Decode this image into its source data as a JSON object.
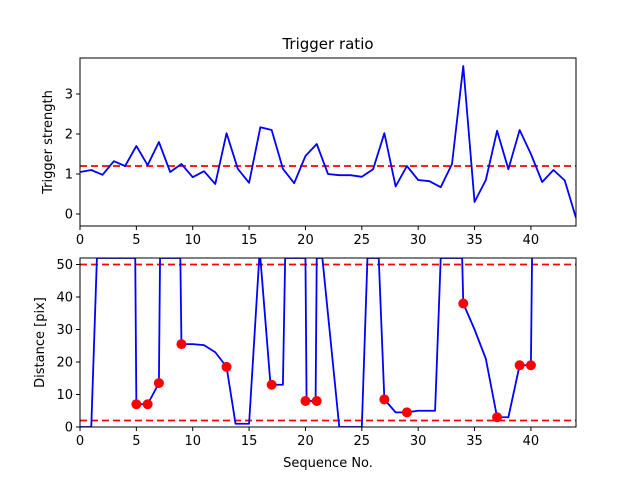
{
  "chart_data": [
    {
      "type": "line",
      "title": "Trigger ratio",
      "xlabel": "Sequence No.",
      "ylabel": "Trigger strength",
      "xlim": [
        0,
        44
      ],
      "ylim": [
        -0.3,
        3.9
      ],
      "xticks": [
        0,
        5,
        10,
        15,
        20,
        25,
        30,
        35,
        40
      ],
      "yticks": [
        0,
        1,
        2,
        3
      ],
      "series": [
        {
          "color": "#0000ff",
          "x": [
            0,
            1,
            2,
            3,
            4,
            5,
            6,
            7,
            8,
            9,
            10,
            11,
            12,
            13,
            14,
            15,
            16,
            17,
            18,
            19,
            20,
            21,
            22,
            23,
            24,
            25,
            26,
            27,
            28,
            29,
            30,
            31,
            32,
            33,
            34,
            35,
            36,
            37,
            38,
            39,
            40,
            41,
            42,
            43,
            44
          ],
          "y": [
            1.05,
            1.1,
            0.98,
            1.32,
            1.2,
            1.7,
            1.22,
            1.8,
            1.05,
            1.25,
            0.92,
            1.07,
            0.75,
            2.02,
            1.13,
            0.78,
            2.17,
            2.1,
            1.13,
            0.77,
            1.45,
            1.75,
            1.0,
            0.97,
            0.97,
            0.93,
            1.12,
            2.02,
            0.69,
            1.2,
            0.85,
            0.82,
            0.67,
            1.25,
            3.7,
            0.3,
            0.85,
            2.08,
            1.12,
            2.1,
            1.5,
            0.8,
            1.1,
            0.84,
            -0.1
          ]
        }
      ],
      "hlines": [
        {
          "y": 1.2,
          "color": "#ff0000",
          "style": "dashed"
        }
      ]
    },
    {
      "type": "line",
      "title": "",
      "xlabel": "Sequence No.",
      "ylabel": "Distance [pix]",
      "xlim": [
        0,
        44
      ],
      "ylim": [
        0,
        52
      ],
      "xticks": [
        0,
        5,
        10,
        15,
        20,
        25,
        30,
        35,
        40
      ],
      "yticks": [
        0,
        10,
        20,
        30,
        40,
        50
      ],
      "series": [
        {
          "color": "#0000ff",
          "x": [
            0,
            1,
            1.5,
            4.9,
            5,
            6,
            7,
            7.1,
            8.9,
            9,
            10,
            11,
            12,
            13,
            13.8,
            15,
            15.9,
            16,
            16.9,
            17,
            18,
            18.2,
            19,
            20,
            20.1,
            20.9,
            21,
            21.5,
            23,
            24,
            25,
            25.5,
            26.5,
            27,
            28,
            29,
            30,
            31.5,
            32,
            33,
            33.9,
            34,
            35,
            36,
            37,
            38,
            39,
            40,
            40.1
          ],
          "y": [
            0,
            0,
            52,
            52,
            7,
            7,
            13.5,
            52,
            52,
            25.5,
            25.5,
            25.2,
            23,
            18.5,
            1,
            1,
            52,
            52,
            13,
            13,
            13,
            52,
            52,
            52,
            8,
            8,
            52,
            52,
            0,
            0,
            0,
            52,
            52,
            8.5,
            4.5,
            4.5,
            5,
            5,
            52,
            52,
            52,
            38,
            30,
            21,
            3,
            3,
            19,
            19,
            52
          ]
        }
      ],
      "markers": {
        "color": "#ff0000",
        "x": [
          5,
          6,
          7,
          9,
          13,
          17,
          20,
          21,
          27,
          29,
          34,
          37,
          39,
          40
        ],
        "y": [
          7,
          7,
          13.5,
          25.5,
          18.5,
          13,
          8,
          8,
          8.5,
          4.5,
          38,
          3,
          19,
          19
        ]
      },
      "hlines": [
        {
          "y": 50,
          "color": "#ff0000",
          "style": "dashed"
        },
        {
          "y": 2,
          "color": "#ff0000",
          "style": "dashed"
        }
      ]
    }
  ]
}
